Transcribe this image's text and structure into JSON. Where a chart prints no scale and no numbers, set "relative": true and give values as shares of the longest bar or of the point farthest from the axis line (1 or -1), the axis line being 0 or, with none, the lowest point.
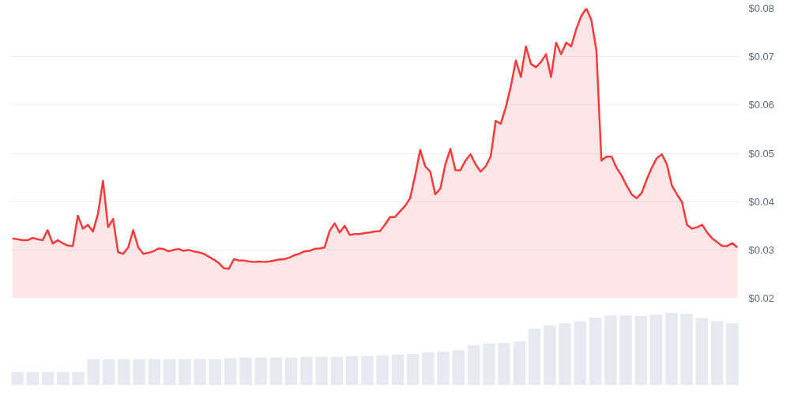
{
  "chart_data": [
    {
      "type": "area",
      "categories": [
        null,
        null,
        null,
        null,
        null,
        null,
        null,
        null,
        null,
        null,
        null,
        null,
        null,
        null,
        null,
        null,
        null,
        null,
        null,
        null,
        null,
        null,
        null,
        null,
        null,
        null,
        null,
        null,
        null,
        null,
        null,
        null,
        null,
        null,
        null,
        null,
        null,
        null,
        null,
        null,
        null,
        null,
        null,
        null,
        null,
        null,
        null,
        null,
        null,
        null,
        null,
        null,
        null,
        null,
        null,
        null,
        null,
        null,
        null,
        null,
        null,
        null,
        null,
        null,
        null,
        null,
        null,
        null,
        null,
        null,
        null,
        null,
        null,
        null,
        null,
        null,
        null,
        null,
        null,
        null,
        null,
        null,
        null,
        null,
        null,
        null,
        null,
        null,
        null,
        null,
        null,
        null,
        null,
        null,
        null,
        null,
        null,
        null,
        null,
        null,
        null,
        null,
        null,
        null,
        null,
        null,
        null,
        null,
        null,
        null,
        null,
        null,
        null,
        null,
        null,
        null,
        null,
        null,
        null,
        null,
        null,
        null,
        null,
        null,
        null,
        null,
        null,
        null,
        null,
        null,
        null,
        null,
        null,
        null,
        null,
        null,
        null,
        null,
        null,
        null,
        null,
        null,
        null,
        null,
        null
      ],
      "series": [
        {
          "color": "#ff3a3a",
          "values": [
            0.0324,
            0.0322,
            0.032,
            0.032,
            0.0325,
            0.0322,
            0.032,
            0.0341,
            0.0313,
            0.032,
            0.0314,
            0.0309,
            0.0308,
            0.0371,
            0.0344,
            0.0352,
            0.0338,
            0.0375,
            0.0443,
            0.0347,
            0.0364,
            0.0295,
            0.0292,
            0.0305,
            0.0341,
            0.0305,
            0.0292,
            0.0294,
            0.0297,
            0.0303,
            0.0302,
            0.0297,
            0.03,
            0.0302,
            0.0298,
            0.03,
            0.0297,
            0.0295,
            0.0292,
            0.0286,
            0.028,
            0.0273,
            0.0262,
            0.0261,
            0.0281,
            0.0278,
            0.0278,
            0.0276,
            0.0275,
            0.0276,
            0.0275,
            0.0276,
            0.0278,
            0.028,
            0.0281,
            0.0284,
            0.0289,
            0.0292,
            0.0297,
            0.0298,
            0.0302,
            0.0303,
            0.0305,
            0.0339,
            0.0355,
            0.0336,
            0.035,
            0.0331,
            0.0333,
            0.0333,
            0.0335,
            0.0336,
            0.0338,
            0.0339,
            0.0352,
            0.0368,
            0.0368,
            0.038,
            0.0391,
            0.0407,
            0.0454,
            0.0507,
            0.0473,
            0.0462,
            0.0415,
            0.0427,
            0.0477,
            0.0509,
            0.0465,
            0.0465,
            0.0485,
            0.0498,
            0.0477,
            0.0462,
            0.0473,
            0.0493,
            0.0567,
            0.0561,
            0.0595,
            0.0638,
            0.0692,
            0.0658,
            0.0721,
            0.0685,
            0.0678,
            0.0689,
            0.0705,
            0.0658,
            0.0729,
            0.0705,
            0.0729,
            0.0721,
            0.0757,
            0.0784,
            0.08,
            0.0776,
            0.0713,
            0.0485,
            0.0493,
            0.0493,
            0.047,
            0.0454,
            0.0433,
            0.0415,
            0.0407,
            0.0418,
            0.0446,
            0.047,
            0.049,
            0.0498,
            0.0477,
            0.0433,
            0.0415,
            0.0399,
            0.0352,
            0.0344,
            0.0347,
            0.0352,
            0.0336,
            0.0324,
            0.0316,
            0.0308,
            0.0308,
            0.0314,
            0.0305
          ]
        }
      ],
      "ylim": [
        0.02,
        0.08
      ],
      "yticks": [
        {
          "value": 0.02,
          "label": "$0.02"
        },
        {
          "value": 0.03,
          "label": "$0.03"
        },
        {
          "value": 0.04,
          "label": "$0.04"
        },
        {
          "value": 0.05,
          "label": "$0.05"
        },
        {
          "value": 0.06,
          "label": "$0.06"
        },
        {
          "value": 0.07,
          "label": "$0.07"
        },
        {
          "value": 0.08,
          "label": "$0.08"
        }
      ],
      "grid": "y"
    },
    {
      "type": "bar",
      "relative": true,
      "categories": [
        null,
        null,
        null,
        null,
        null,
        null,
        null,
        null,
        null,
        null,
        null,
        null,
        null,
        null,
        null,
        null,
        null,
        null,
        null,
        null,
        null,
        null,
        null,
        null,
        null,
        null,
        null,
        null,
        null,
        null,
        null,
        null,
        null,
        null,
        null,
        null,
        null,
        null,
        null,
        null,
        null,
        null,
        null,
        null,
        null,
        null,
        null,
        null
      ],
      "series": [
        {
          "color": "#e6e9ef",
          "values": [
            0.18,
            0.18,
            0.18,
            0.18,
            0.18,
            0.36,
            0.36,
            0.36,
            0.36,
            0.36,
            0.36,
            0.36,
            0.36,
            0.36,
            0.37,
            0.38,
            0.38,
            0.38,
            0.38,
            0.39,
            0.39,
            0.39,
            0.4,
            0.4,
            0.41,
            0.42,
            0.43,
            0.45,
            0.46,
            0.48,
            0.55,
            0.57,
            0.58,
            0.6,
            0.78,
            0.82,
            0.85,
            0.88,
            0.93,
            0.96,
            0.96,
            0.95,
            0.97,
            1.0,
            0.98,
            0.92,
            0.88,
            0.85
          ]
        }
      ]
    }
  ]
}
